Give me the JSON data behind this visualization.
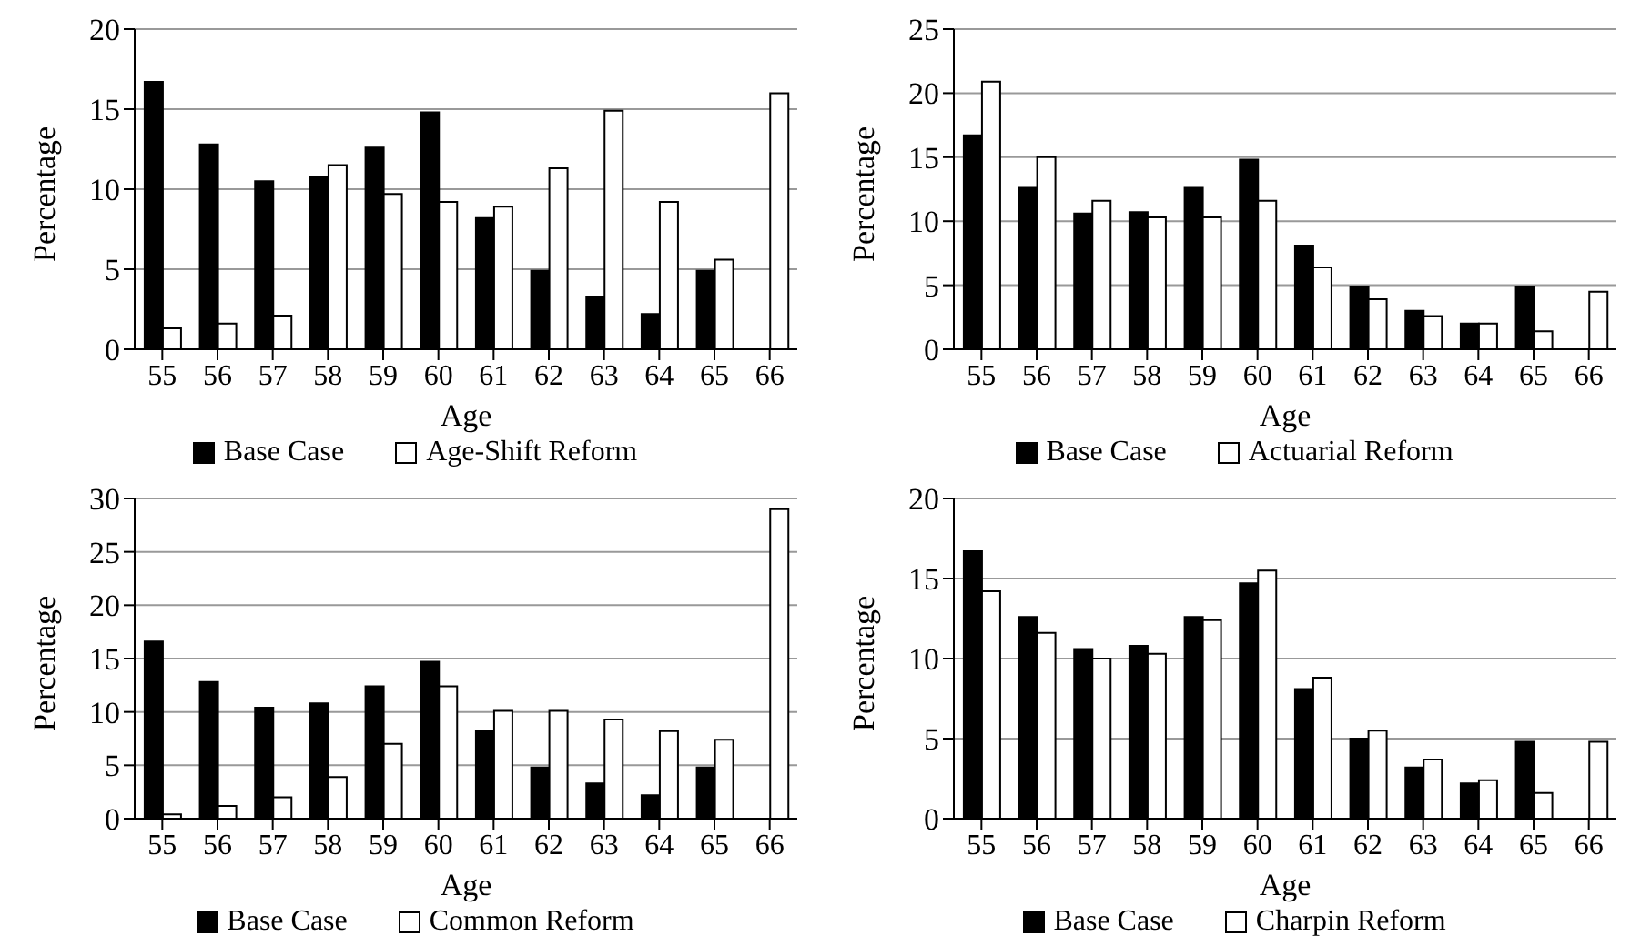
{
  "chart_data": [
    {
      "type": "bar",
      "xlabel": "Age",
      "ylabel": "Percentage",
      "categories": [
        "55",
        "56",
        "57",
        "58",
        "59",
        "60",
        "61",
        "62",
        "63",
        "64",
        "65",
        "66"
      ],
      "series": [
        {
          "name": "Base Case",
          "color": "#000000",
          "values": [
            16.7,
            12.8,
            10.5,
            10.8,
            12.6,
            14.8,
            8.2,
            4.9,
            3.3,
            2.2,
            4.9,
            null
          ]
        },
        {
          "name": "Age-Shift Reform",
          "color": "#ffffff",
          "values": [
            1.3,
            1.6,
            2.1,
            11.5,
            9.7,
            9.2,
            8.9,
            11.3,
            14.9,
            9.2,
            5.6,
            16.0
          ]
        }
      ],
      "ylim": [
        0,
        20
      ],
      "yticks": [
        0,
        5,
        10,
        15,
        20
      ],
      "grid": "y",
      "legend": "bottom"
    },
    {
      "type": "bar",
      "xlabel": "Age",
      "ylabel": "Percentage",
      "categories": [
        "55",
        "56",
        "57",
        "58",
        "59",
        "60",
        "61",
        "62",
        "63",
        "64",
        "65",
        "66"
      ],
      "series": [
        {
          "name": "Base Case",
          "color": "#000000",
          "values": [
            16.7,
            12.6,
            10.6,
            10.7,
            12.6,
            14.8,
            8.1,
            4.9,
            3.0,
            2.0,
            4.9,
            null
          ]
        },
        {
          "name": "Actuarial Reform",
          "color": "#ffffff",
          "values": [
            20.9,
            15.0,
            11.6,
            10.3,
            10.3,
            11.6,
            6.4,
            3.9,
            2.6,
            2.0,
            1.4,
            4.5
          ]
        }
      ],
      "ylim": [
        0,
        25
      ],
      "yticks": [
        0,
        5,
        10,
        15,
        20,
        25
      ],
      "grid": "y",
      "legend": "bottom"
    },
    {
      "type": "bar",
      "xlabel": "Age",
      "ylabel": "Percentage",
      "categories": [
        "55",
        "56",
        "57",
        "58",
        "59",
        "60",
        "61",
        "62",
        "63",
        "64",
        "65",
        "66"
      ],
      "series": [
        {
          "name": "Base Case",
          "color": "#000000",
          "values": [
            16.6,
            12.8,
            10.4,
            10.8,
            12.4,
            14.7,
            8.2,
            4.8,
            3.3,
            2.2,
            4.8,
            null
          ]
        },
        {
          "name": "Common Reform",
          "color": "#ffffff",
          "values": [
            0.4,
            1.2,
            2.0,
            3.9,
            7.0,
            12.4,
            10.1,
            10.1,
            9.3,
            8.2,
            7.4,
            29.0
          ]
        }
      ],
      "ylim": [
        0,
        30
      ],
      "yticks": [
        0,
        5,
        10,
        15,
        20,
        25,
        30
      ],
      "grid": "y",
      "legend": "bottom"
    },
    {
      "type": "bar",
      "xlabel": "Age",
      "ylabel": "Percentage",
      "categories": [
        "55",
        "56",
        "57",
        "58",
        "59",
        "60",
        "61",
        "62",
        "63",
        "64",
        "65",
        "66"
      ],
      "series": [
        {
          "name": "Base Case",
          "color": "#000000",
          "values": [
            16.7,
            12.6,
            10.6,
            10.8,
            12.6,
            14.7,
            8.1,
            5.0,
            3.2,
            2.2,
            4.8,
            null
          ]
        },
        {
          "name": "Charpin Reform",
          "color": "#ffffff",
          "values": [
            14.2,
            11.6,
            10.0,
            10.3,
            12.4,
            15.5,
            8.8,
            5.5,
            3.7,
            2.4,
            1.6,
            4.8
          ]
        }
      ],
      "ylim": [
        0,
        20
      ],
      "yticks": [
        0,
        5,
        10,
        15,
        20
      ],
      "grid": "y",
      "legend": "bottom"
    }
  ]
}
